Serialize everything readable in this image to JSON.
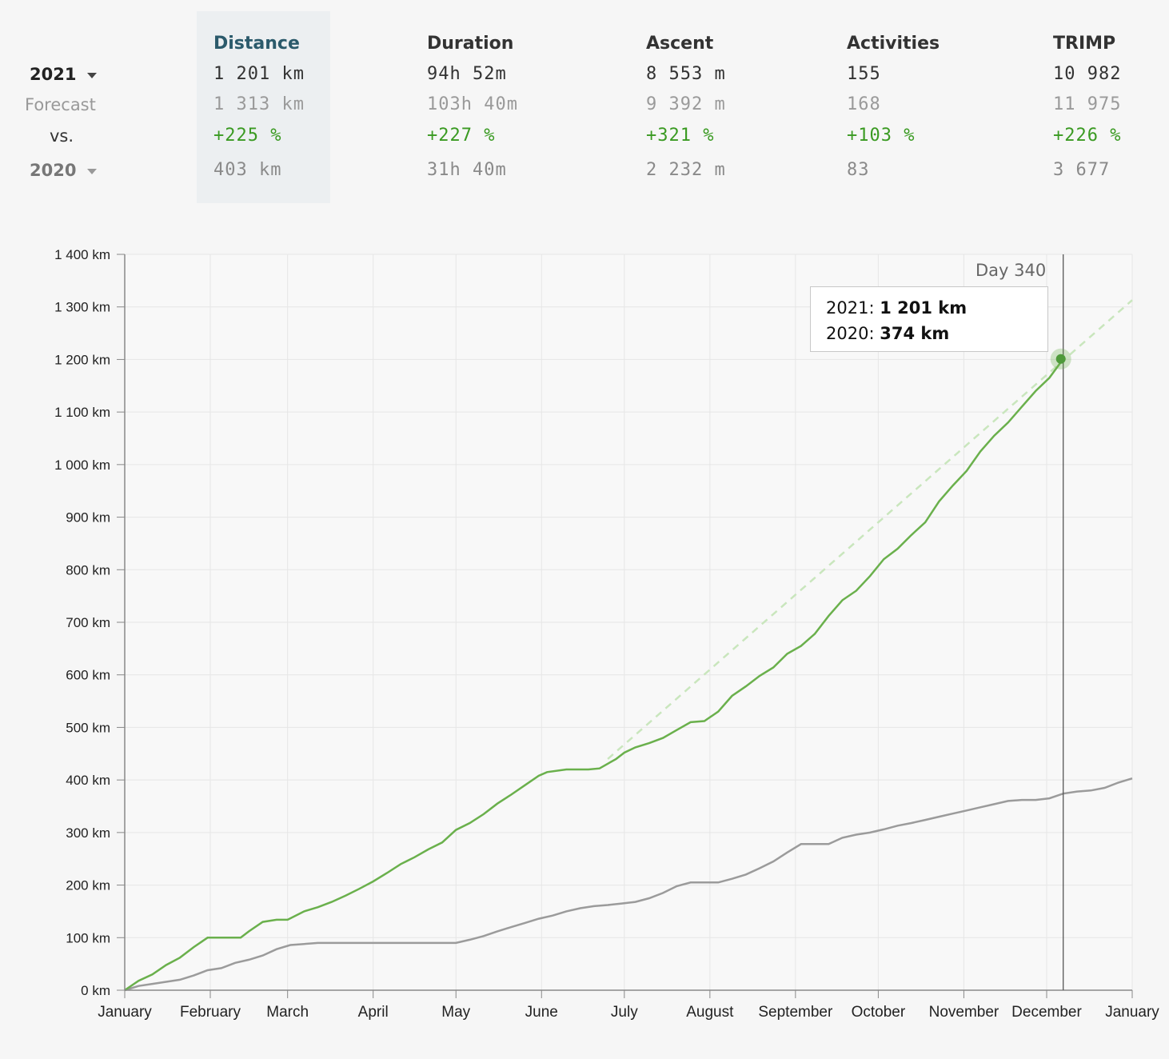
{
  "stats": {
    "primary_year": "2021",
    "forecast_label": "Forecast",
    "vs_label": "vs.",
    "compare_year": "2020",
    "columns": [
      {
        "header": "Distance",
        "value": "1 201 km",
        "forecast": "1 313 km",
        "change": "+225 %",
        "previous": "403 km"
      },
      {
        "header": "Duration",
        "value": "94h 52m",
        "forecast": "103h 40m",
        "change": "+227 %",
        "previous": "31h 40m"
      },
      {
        "header": "Ascent",
        "value": "8 553 m",
        "forecast": "9 392 m",
        "change": "+321 %",
        "previous": "2 232 m"
      },
      {
        "header": "Activities",
        "value": "155",
        "forecast": "168",
        "change": "+103 %",
        "previous": "83"
      },
      {
        "header": "TRIMP",
        "value": "10 982",
        "forecast": "11 975",
        "change": "+226 %",
        "previous": "3 677"
      }
    ]
  },
  "tooltip": {
    "day_label": "Day 340",
    "line1_year": "2021:",
    "line1_value": "1 201 km",
    "line2_year": "2020:",
    "line2_value": "374 km"
  },
  "colors": {
    "series_2021": "#6ab04c",
    "series_2020": "#9b9b9b",
    "forecast": "#c9e6bd",
    "grid": "#e6e6e6",
    "axis": "#888888"
  },
  "chart_data": {
    "type": "line",
    "xlabel": "",
    "ylabel": "",
    "x_unit": "day of year",
    "xlim": [
      0,
      365
    ],
    "ylim": [
      0,
      1400
    ],
    "y_ticks": [
      0,
      100,
      200,
      300,
      400,
      500,
      600,
      700,
      800,
      900,
      1000,
      1100,
      1200,
      1300,
      1400
    ],
    "y_tick_labels": [
      "0 km",
      "100 km",
      "200 km",
      "300 km",
      "400 km",
      "500 km",
      "600 km",
      "700 km",
      "800 km",
      "900 km",
      "1 000 km",
      "1 100 km",
      "1 200 km",
      "1 300 km",
      "1 400 km"
    ],
    "x_ticks": [
      0,
      31,
      59,
      90,
      120,
      151,
      181,
      212,
      243,
      273,
      304,
      334,
      365
    ],
    "x_tick_labels": [
      "January",
      "February",
      "March",
      "April",
      "May",
      "June",
      "July",
      "August",
      "September",
      "October",
      "November",
      "December",
      "January"
    ],
    "cursor_day": 340,
    "grid": true,
    "series": [
      {
        "name": "2021",
        "x": [
          0,
          5,
          10,
          15,
          20,
          25,
          30,
          35,
          42,
          45,
          50,
          55,
          59,
          65,
          70,
          75,
          80,
          85,
          90,
          95,
          100,
          105,
          110,
          115,
          120,
          125,
          130,
          135,
          140,
          145,
          150,
          153,
          160,
          168,
          172,
          178,
          181,
          185,
          190,
          195,
          200,
          205,
          210,
          215,
          220,
          225,
          230,
          235,
          240,
          245,
          250,
          255,
          260,
          265,
          270,
          275,
          280,
          285,
          290,
          295,
          300,
          305,
          310,
          315,
          320,
          325,
          330,
          335,
          340
        ],
        "y": [
          0,
          18,
          30,
          48,
          62,
          82,
          100,
          100,
          100,
          112,
          130,
          134,
          134,
          150,
          158,
          168,
          180,
          193,
          207,
          223,
          240,
          253,
          268,
          281,
          305,
          318,
          335,
          355,
          372,
          390,
          408,
          415,
          420,
          420,
          422,
          440,
          452,
          462,
          470,
          480,
          495,
          510,
          512,
          530,
          560,
          578,
          598,
          614,
          640,
          655,
          678,
          712,
          742,
          760,
          788,
          820,
          840,
          866,
          890,
          930,
          960,
          988,
          1025,
          1055,
          1080,
          1110,
          1140,
          1165,
          1201
        ]
      },
      {
        "name": "2020",
        "x": [
          0,
          5,
          10,
          15,
          20,
          25,
          30,
          35,
          40,
          45,
          50,
          55,
          60,
          70,
          80,
          90,
          100,
          110,
          120,
          125,
          130,
          135,
          140,
          145,
          150,
          155,
          160,
          165,
          170,
          175,
          180,
          185,
          190,
          195,
          200,
          205,
          210,
          215,
          220,
          225,
          230,
          235,
          240,
          245,
          250,
          255,
          260,
          265,
          270,
          275,
          280,
          285,
          290,
          295,
          300,
          305,
          310,
          315,
          320,
          325,
          330,
          335,
          340,
          345,
          350,
          355,
          360,
          365
        ],
        "y": [
          0,
          8,
          12,
          16,
          20,
          28,
          38,
          42,
          52,
          58,
          66,
          78,
          86,
          90,
          90,
          90,
          90,
          90,
          90,
          96,
          103,
          112,
          120,
          128,
          136,
          142,
          150,
          156,
          160,
          162,
          165,
          168,
          175,
          185,
          198,
          205,
          205,
          205,
          212,
          220,
          232,
          245,
          262,
          278,
          278,
          278,
          290,
          296,
          300,
          306,
          313,
          318,
          324,
          330,
          336,
          342,
          348,
          354,
          360,
          362,
          362,
          365,
          374,
          378,
          380,
          385,
          395,
          403
        ]
      },
      {
        "name": "Forecast",
        "x": [
          175,
          365
        ],
        "y": [
          440,
          1313
        ]
      }
    ]
  }
}
